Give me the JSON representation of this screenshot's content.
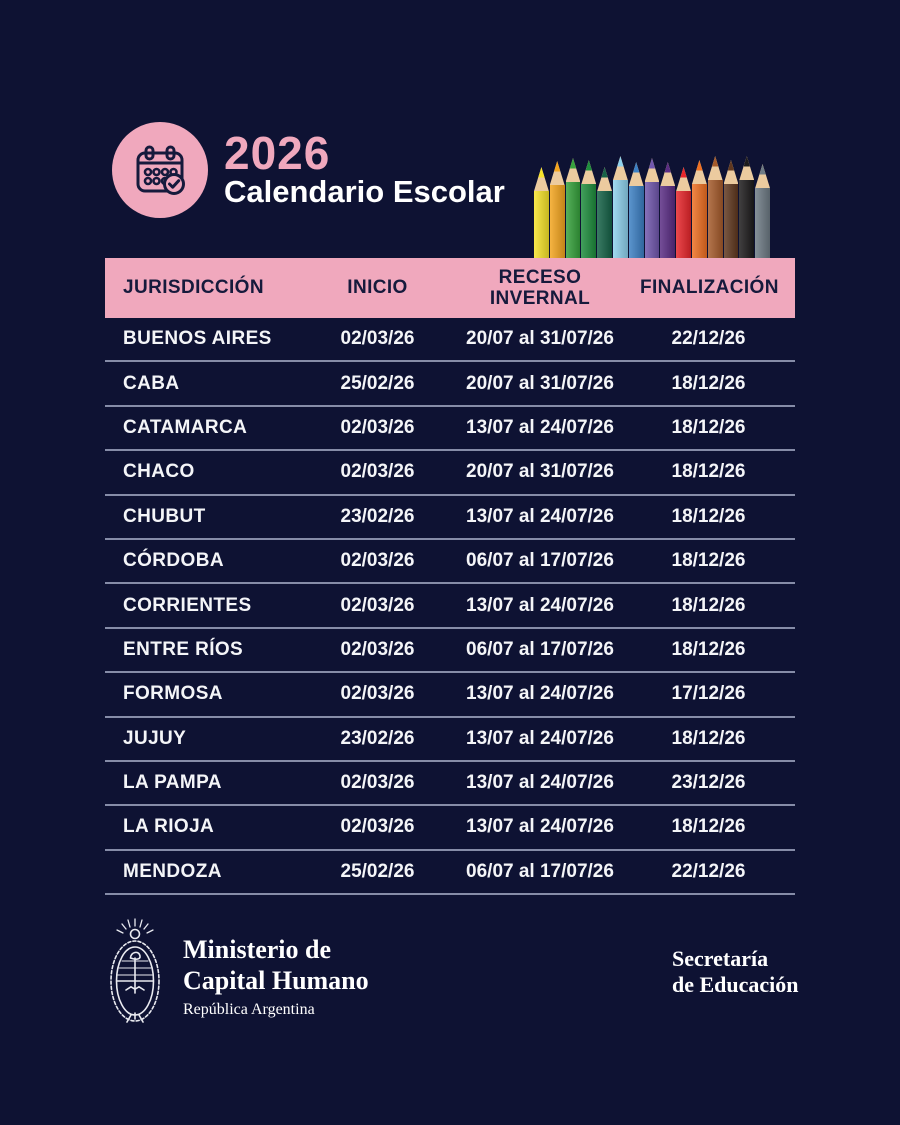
{
  "colors": {
    "background": "#0e1233",
    "pink": "#f0a8bd",
    "navy_text": "#161a3c",
    "row_text": "#f4f5f8",
    "divider": "#868ca8"
  },
  "header": {
    "year": "2026",
    "title": "Calendario Escolar",
    "icon": "calendar-check-icon"
  },
  "pencils": {
    "colors": [
      "#f8e42a",
      "#f4a51e",
      "#36a23c",
      "#1e8e3d",
      "#156247",
      "#8fd2ee",
      "#3c80c4",
      "#7157ae",
      "#5a2c84",
      "#e8262b",
      "#f07022",
      "#a65b2b",
      "#60381f",
      "#1d1b1c",
      "#6e7b85"
    ]
  },
  "table": {
    "columns": {
      "jurisdiccion": "JURISDICCIÓN",
      "inicio": "INICIO",
      "receso_line1": "RECESO",
      "receso_line2": "INVERNAL",
      "finalizacion": "FINALIZACIÓN"
    },
    "rows": [
      {
        "jurisdiccion": "BUENOS AIRES",
        "inicio": "02/03/26",
        "receso": "20/07 al 31/07/26",
        "finalizacion": "22/12/26"
      },
      {
        "jurisdiccion": "CABA",
        "inicio": "25/02/26",
        "receso": "20/07 al 31/07/26",
        "finalizacion": "18/12/26"
      },
      {
        "jurisdiccion": "CATAMARCA",
        "inicio": "02/03/26",
        "receso": "13/07 al 24/07/26",
        "finalizacion": "18/12/26"
      },
      {
        "jurisdiccion": "CHACO",
        "inicio": "02/03/26",
        "receso": "20/07 al 31/07/26",
        "finalizacion": "18/12/26"
      },
      {
        "jurisdiccion": "CHUBUT",
        "inicio": "23/02/26",
        "receso": "13/07 al 24/07/26",
        "finalizacion": "18/12/26"
      },
      {
        "jurisdiccion": "CÓRDOBA",
        "inicio": "02/03/26",
        "receso": "06/07 al 17/07/26",
        "finalizacion": "18/12/26"
      },
      {
        "jurisdiccion": "CORRIENTES",
        "inicio": "02/03/26",
        "receso": "13/07 al 24/07/26",
        "finalizacion": "18/12/26"
      },
      {
        "jurisdiccion": "ENTRE RÍOS",
        "inicio": "02/03/26",
        "receso": "06/07 al 17/07/26",
        "finalizacion": "18/12/26"
      },
      {
        "jurisdiccion": "FORMOSA",
        "inicio": "02/03/26",
        "receso": "13/07 al 24/07/26",
        "finalizacion": "17/12/26"
      },
      {
        "jurisdiccion": "JUJUY",
        "inicio": "23/02/26",
        "receso": "13/07 al 24/07/26",
        "finalizacion": "18/12/26"
      },
      {
        "jurisdiccion": "LA PAMPA",
        "inicio": "02/03/26",
        "receso": "13/07 al 24/07/26",
        "finalizacion": "23/12/26"
      },
      {
        "jurisdiccion": "LA RIOJA",
        "inicio": "02/03/26",
        "receso": "13/07 al 24/07/26",
        "finalizacion": "18/12/26"
      },
      {
        "jurisdiccion": "MENDOZA",
        "inicio": "25/02/26",
        "receso": "06/07 al 17/07/26",
        "finalizacion": "22/12/26"
      }
    ]
  },
  "footer": {
    "ministry_line1": "Ministerio de",
    "ministry_line2": "Capital Humano",
    "country": "República Argentina",
    "secretariat_line1": "Secretaría",
    "secretariat_line2": "de Educación"
  }
}
